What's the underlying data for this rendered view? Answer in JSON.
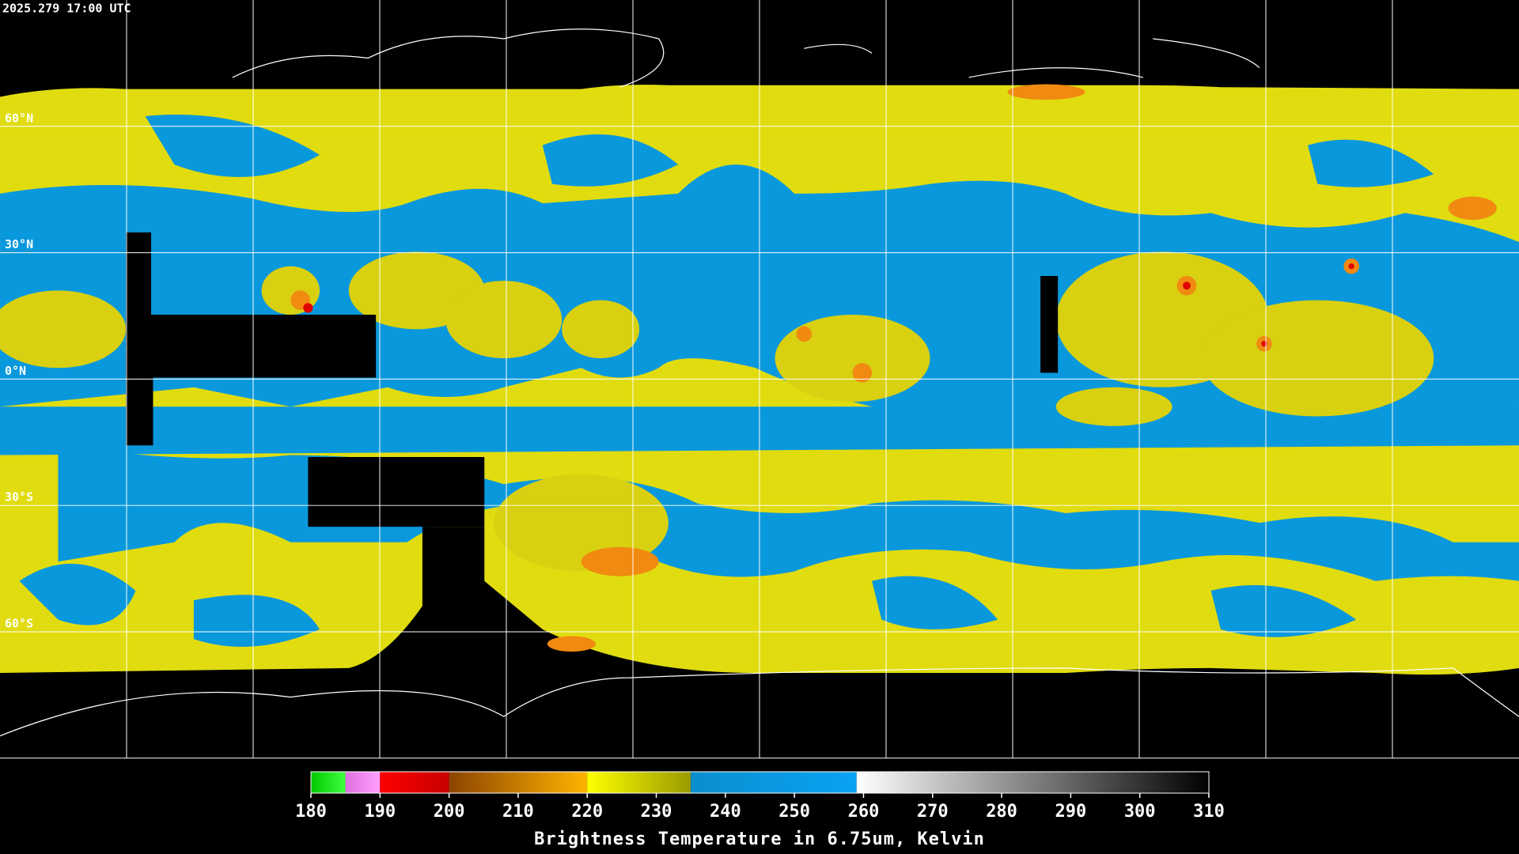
{
  "header": {
    "timestamp": "2025.279 17:00 UTC"
  },
  "map": {
    "lat_labels": [
      "60°N",
      "30°N",
      "0°N",
      "30°S",
      "60°S"
    ]
  },
  "colorbar": {
    "title": "Brightness Temperature in 6.75um, Kelvin",
    "lim": [
      180,
      310
    ],
    "ticks": [
      180,
      190,
      200,
      210,
      220,
      230,
      240,
      250,
      260,
      270,
      280,
      290,
      300,
      310
    ],
    "segments": [
      {
        "from": 180,
        "to": 185,
        "colors": [
          "#00c800",
          "#40ff40"
        ]
      },
      {
        "from": 185,
        "to": 190,
        "colors": [
          "#e070e0",
          "#ffa0ff"
        ]
      },
      {
        "from": 190,
        "to": 200,
        "colors": [
          "#ff0000",
          "#c80000"
        ]
      },
      {
        "from": 200,
        "to": 220,
        "colors": [
          "#8c4400",
          "#ffb400"
        ]
      },
      {
        "from": 220,
        "to": 235,
        "colors": [
          "#ffff00",
          "#9a9a00"
        ]
      },
      {
        "from": 235,
        "to": 259,
        "colors": [
          "#0a8fcf",
          "#0aa2f2"
        ]
      },
      {
        "from": 259,
        "to": 310,
        "colors": [
          "#ffffff",
          "#000000"
        ]
      }
    ]
  }
}
